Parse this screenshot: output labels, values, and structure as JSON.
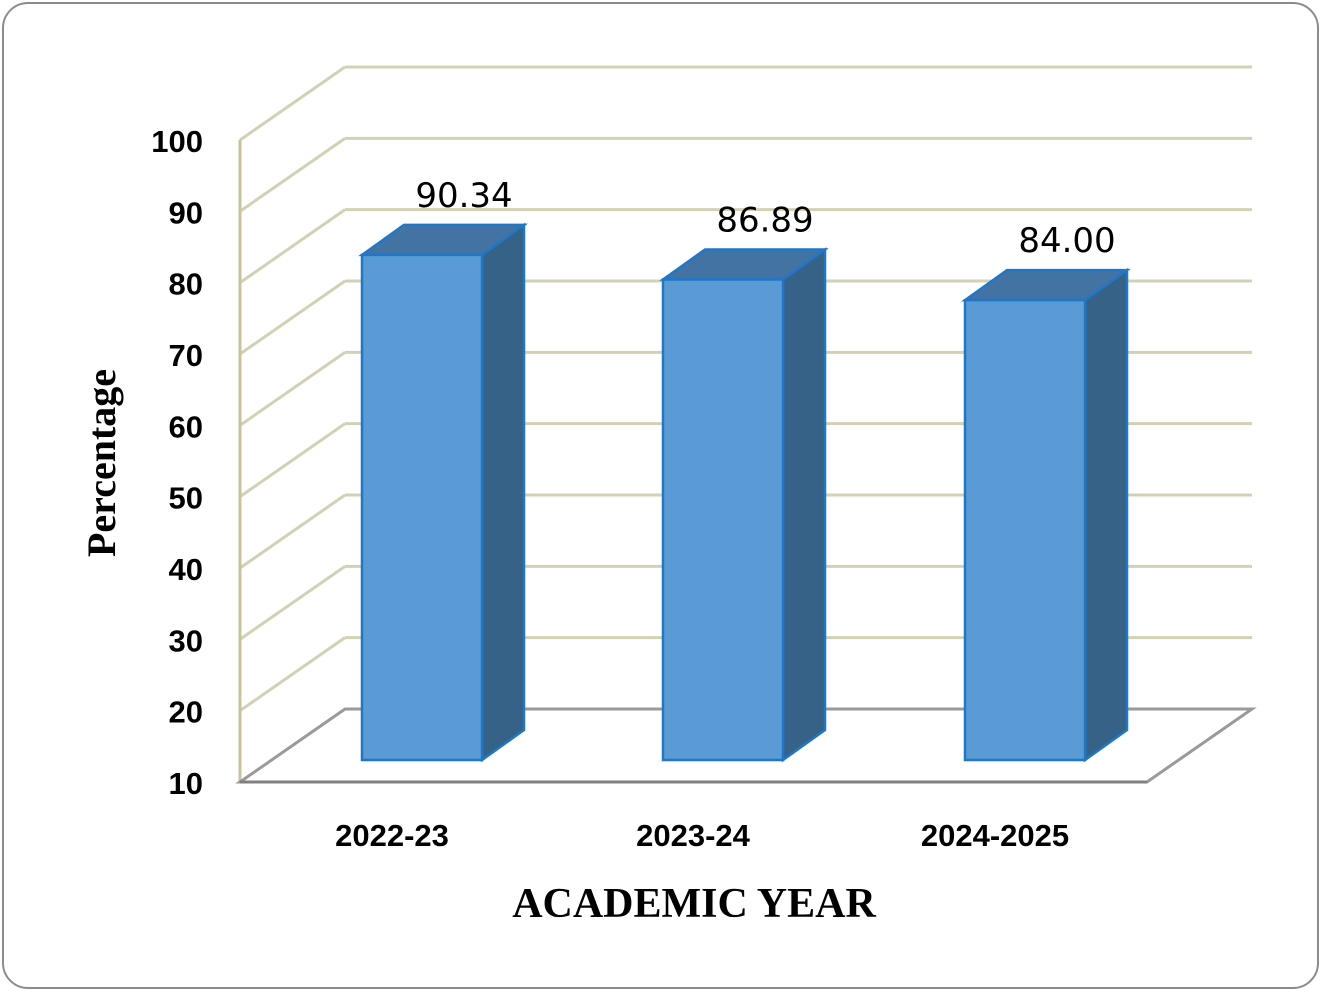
{
  "chart_data": {
    "type": "bar",
    "title": "",
    "xlabel": "ACADEMIC YEAR",
    "ylabel": "Percentage",
    "categories": [
      "2022-23",
      "2023-24",
      "2024-2025"
    ],
    "series": [
      {
        "values": [
          90.34,
          86.89,
          84.0
        ],
        "labels": [
          "90.34",
          "86.89",
          "84.00"
        ]
      }
    ],
    "ylim": [
      10,
      100
    ],
    "yticks": [
      "10",
      "20",
      "30",
      "40",
      "50",
      "60",
      "70",
      "80",
      "90",
      "100"
    ],
    "grid": true,
    "legend": "none",
    "style": "3d-column",
    "colors": {
      "front": "#5b9bd5",
      "side": "#376287",
      "top": "#4373a3",
      "edge": "#1f77c8",
      "grid": "#d3d1b4"
    }
  }
}
